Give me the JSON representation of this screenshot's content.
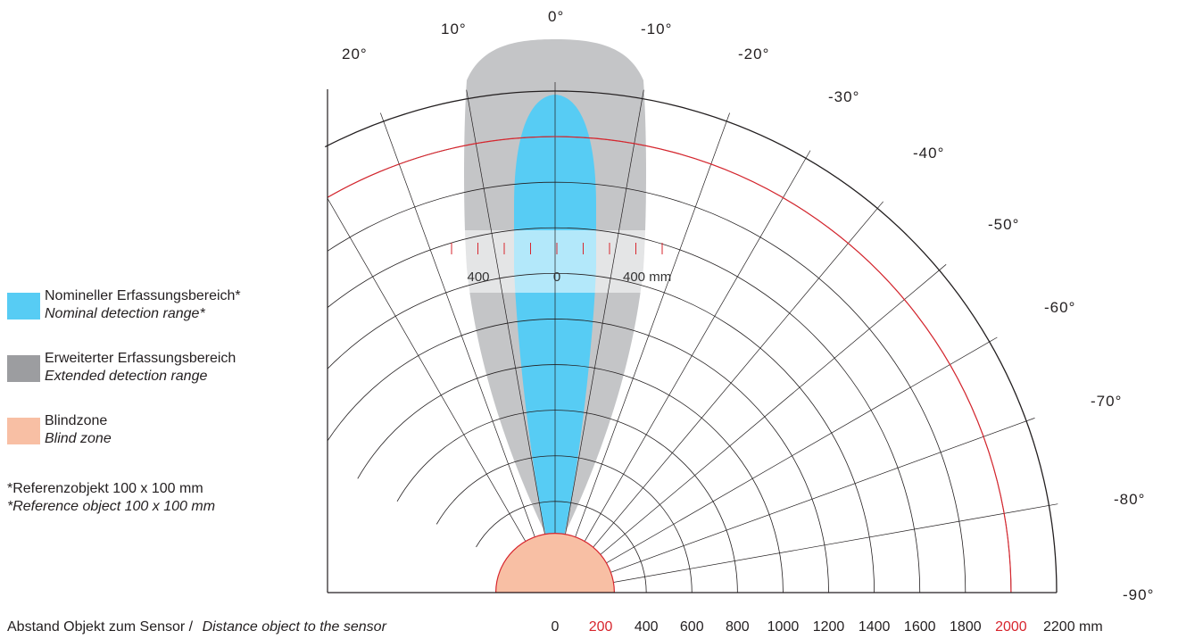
{
  "colors": {
    "nominal": "#57ccf4",
    "extended": "#c4c5c7",
    "blind": "#f8bfa4",
    "blind_outline": "#d7262e",
    "red_arc": "#d7262e",
    "grid": "#231f20"
  },
  "angles": {
    "top_labels": [
      "20°",
      "10°",
      "0°",
      "-10°",
      "-20°"
    ],
    "right_labels": [
      "-30°",
      "-40°",
      "-50°",
      "-60°",
      "-70°",
      "-80°",
      "-90°"
    ]
  },
  "distance_axis": {
    "caption_de": "Abstand Objekt zum Sensor /",
    "caption_en": "Distance object to the sensor",
    "ticks": [
      {
        "label": "0",
        "value": 0,
        "highlight": false
      },
      {
        "label": "200",
        "value": 200,
        "highlight": true
      },
      {
        "label": "400",
        "value": 400,
        "highlight": false
      },
      {
        "label": "600",
        "value": 600,
        "highlight": false
      },
      {
        "label": "800",
        "value": 800,
        "highlight": false
      },
      {
        "label": "1000",
        "value": 1000,
        "highlight": false
      },
      {
        "label": "1200",
        "value": 1200,
        "highlight": false
      },
      {
        "label": "1400",
        "value": 1400,
        "highlight": false
      },
      {
        "label": "1600",
        "value": 1600,
        "highlight": false
      },
      {
        "label": "1800",
        "value": 1800,
        "highlight": false
      },
      {
        "label": "2000",
        "value": 2000,
        "highlight": true
      },
      {
        "label": "2200 mm",
        "value": 2200,
        "highlight": false
      }
    ],
    "max_mm": 2200
  },
  "lateral_scale": {
    "left_label": "400",
    "center_label": "0",
    "right_label": "400 mm"
  },
  "legend": [
    {
      "key": "nominal",
      "label_de": "Nomineller Erfassungsbereich*",
      "label_en": "Nominal detection range*"
    },
    {
      "key": "extended",
      "label_de": "Erweiterter Erfassungsbereich",
      "label_en": "Extended detection range"
    },
    {
      "key": "blind",
      "label_de": "Blindzone",
      "label_en": "Blind zone"
    }
  ],
  "note": {
    "de": "*Referenzobjekt 100 x 100 mm",
    "en": "*Reference object 100 x 100 mm"
  }
}
